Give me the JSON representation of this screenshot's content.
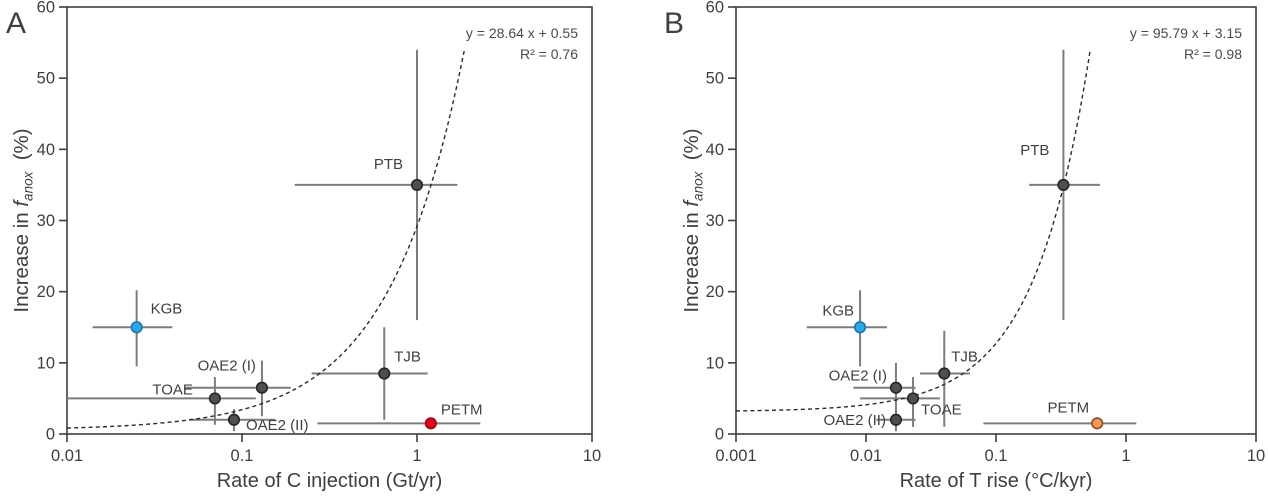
{
  "figure": {
    "description_visible_text_only": true
  },
  "colors": {
    "background": "#ffffff",
    "axis": "#3f3f3f",
    "text": "#3f3f3f",
    "equation_text": "#4a4a4a",
    "error_bar": "#7d7d7d",
    "fit_line": "#2b2b2b",
    "default_fill": "#4f4f4f",
    "default_stroke": "#262626",
    "kgb_fill": "#29abe2",
    "kgb_stroke": "#1b75bb",
    "petm_a_fill": "#e30613",
    "petm_a_stroke": "#970a10",
    "petm_b_fill": "#f39a56",
    "petm_b_stroke": "#8c4a1e"
  },
  "chart_data": [
    {
      "panel_label": "A",
      "type": "scatter",
      "title": "",
      "xlabel": "Rate of C injection (Gt/yr)",
      "ylabel_parts": {
        "prefix": "Increase in ",
        "italic": "f",
        "subscript": "anox",
        "suffix": "  (%)"
      },
      "x_scale": "log",
      "xlim": [
        0.01,
        10
      ],
      "ylim": [
        0,
        60
      ],
      "grid": false,
      "x_ticks": [
        {
          "value": 0.01,
          "label": "0.01"
        },
        {
          "value": 0.1,
          "label": "0.1"
        },
        {
          "value": 1,
          "label": "1"
        },
        {
          "value": 10,
          "label": "10"
        }
      ],
      "y_ticks": [
        {
          "value": 0,
          "label": "0"
        },
        {
          "value": 10,
          "label": "10"
        },
        {
          "value": 20,
          "label": "20"
        },
        {
          "value": 30,
          "label": "30"
        },
        {
          "value": 40,
          "label": "40"
        },
        {
          "value": 50,
          "label": "50"
        },
        {
          "value": 60,
          "label": "60"
        }
      ],
      "fit_line": {
        "equation_label": "y = 28.64 x + 0.55",
        "r2_label": "R² = 0.76",
        "slope": 28.64,
        "intercept": 0.55,
        "style": "dashed",
        "draw_to_y": 54
      },
      "points": [
        {
          "name": "KGB",
          "x": 0.025,
          "y": 15,
          "x_err": [
            0.014,
            0.04
          ],
          "y_err": [
            9.5,
            20.2
          ],
          "color": "kgb",
          "label_anchor": "start",
          "label_offset": [
            14,
            -14
          ]
        },
        {
          "name": "TOAE",
          "x": 0.07,
          "y": 5,
          "x_err": [
            0.01,
            0.12
          ],
          "y_err": [
            1.3,
            8.0
          ],
          "color": "default",
          "label_anchor": "end",
          "label_offset": [
            -22,
            -4
          ]
        },
        {
          "name": "OAE2 (I)",
          "x": 0.13,
          "y": 6.5,
          "x_err": [
            0.047,
            0.19
          ],
          "y_err": [
            2.5,
            10.3
          ],
          "color": "default",
          "label_anchor": "end",
          "label_offset": [
            -6,
            -17
          ]
        },
        {
          "name": "OAE2 (II)",
          "x": 0.09,
          "y": 2,
          "x_err": [
            0.05,
            0.155
          ],
          "y_err": [
            0.4,
            3.5
          ],
          "color": "default",
          "label_anchor": "start",
          "label_offset": [
            12,
            10
          ]
        },
        {
          "name": "TJB",
          "x": 0.65,
          "y": 8.5,
          "x_err": [
            0.25,
            1.15
          ],
          "y_err": [
            2.0,
            15.0
          ],
          "color": "default",
          "label_anchor": "start",
          "label_offset": [
            10,
            -12
          ]
        },
        {
          "name": "PTB",
          "x": 1.0,
          "y": 35,
          "x_err": [
            0.2,
            1.7
          ],
          "y_err": [
            16,
            54
          ],
          "color": "default",
          "label_anchor": "end",
          "label_offset": [
            -14,
            -16
          ]
        },
        {
          "name": "PETM",
          "x": 1.2,
          "y": 1.5,
          "x_err": [
            0.27,
            2.3
          ],
          "y_err": null,
          "color": "petm_a",
          "label_anchor": "start",
          "label_offset": [
            10,
            -9
          ]
        }
      ]
    },
    {
      "panel_label": "B",
      "type": "scatter",
      "title": "",
      "xlabel": "Rate of T rise (°C/kyr)",
      "ylabel_parts": {
        "prefix": "Increase in ",
        "italic": "f",
        "subscript": "anox",
        "suffix": "  (%)"
      },
      "x_scale": "log",
      "xlim": [
        0.001,
        10
      ],
      "ylim": [
        0,
        60
      ],
      "grid": false,
      "x_ticks": [
        {
          "value": 0.001,
          "label": "0.001"
        },
        {
          "value": 0.01,
          "label": "0.01"
        },
        {
          "value": 0.1,
          "label": "0.1"
        },
        {
          "value": 1,
          "label": "1"
        },
        {
          "value": 10,
          "label": "10"
        }
      ],
      "y_ticks": [
        {
          "value": 0,
          "label": "0"
        },
        {
          "value": 10,
          "label": "10"
        },
        {
          "value": 20,
          "label": "20"
        },
        {
          "value": 30,
          "label": "30"
        },
        {
          "value": 40,
          "label": "40"
        },
        {
          "value": 50,
          "label": "50"
        },
        {
          "value": 60,
          "label": "60"
        }
      ],
      "fit_line": {
        "equation_label": "y = 95.79 x + 3.15",
        "r2_label": "R² = 0.98",
        "slope": 95.79,
        "intercept": 3.15,
        "style": "dashed",
        "draw_to_y": 54
      },
      "points": [
        {
          "name": "KGB",
          "x": 0.009,
          "y": 15,
          "x_err": [
            0.0035,
            0.0145
          ],
          "y_err": [
            9.5,
            20.2
          ],
          "color": "kgb",
          "label_anchor": "end",
          "label_offset": [
            -6,
            -12
          ]
        },
        {
          "name": "OAE2 (I)",
          "x": 0.017,
          "y": 6.5,
          "x_err": [
            0.008,
            0.024
          ],
          "y_err": [
            2.3,
            10.0
          ],
          "color": "default",
          "label_anchor": "end",
          "label_offset": [
            -9,
            -7
          ]
        },
        {
          "name": "TOAE",
          "x": 0.023,
          "y": 5,
          "x_err": [
            0.009,
            0.037
          ],
          "y_err": [
            1.0,
            8.0
          ],
          "color": "default",
          "label_anchor": "start",
          "label_offset": [
            8,
            16
          ]
        },
        {
          "name": "OAE2 (II)",
          "x": 0.017,
          "y": 2,
          "x_err": [
            0.012,
            0.024
          ],
          "y_err": [
            0.4,
            3.5
          ],
          "color": "default",
          "label_anchor": "end",
          "label_offset": [
            -10,
            5
          ]
        },
        {
          "name": "TJB",
          "x": 0.04,
          "y": 8.5,
          "x_err": [
            0.026,
            0.063
          ],
          "y_err": [
            1.0,
            14.5
          ],
          "color": "default",
          "label_anchor": "start",
          "label_offset": [
            7,
            -12
          ]
        },
        {
          "name": "PTB",
          "x": 0.33,
          "y": 35,
          "x_err": [
            0.18,
            0.63
          ],
          "y_err": [
            16,
            54
          ],
          "color": "default",
          "label_anchor": "end",
          "label_offset": [
            -14,
            -30
          ]
        },
        {
          "name": "PETM",
          "x": 0.6,
          "y": 1.5,
          "x_err": [
            0.08,
            1.2
          ],
          "y_err": null,
          "color": "petm_b",
          "label_anchor": "end",
          "label_offset": [
            -8,
            -11
          ]
        }
      ]
    }
  ]
}
